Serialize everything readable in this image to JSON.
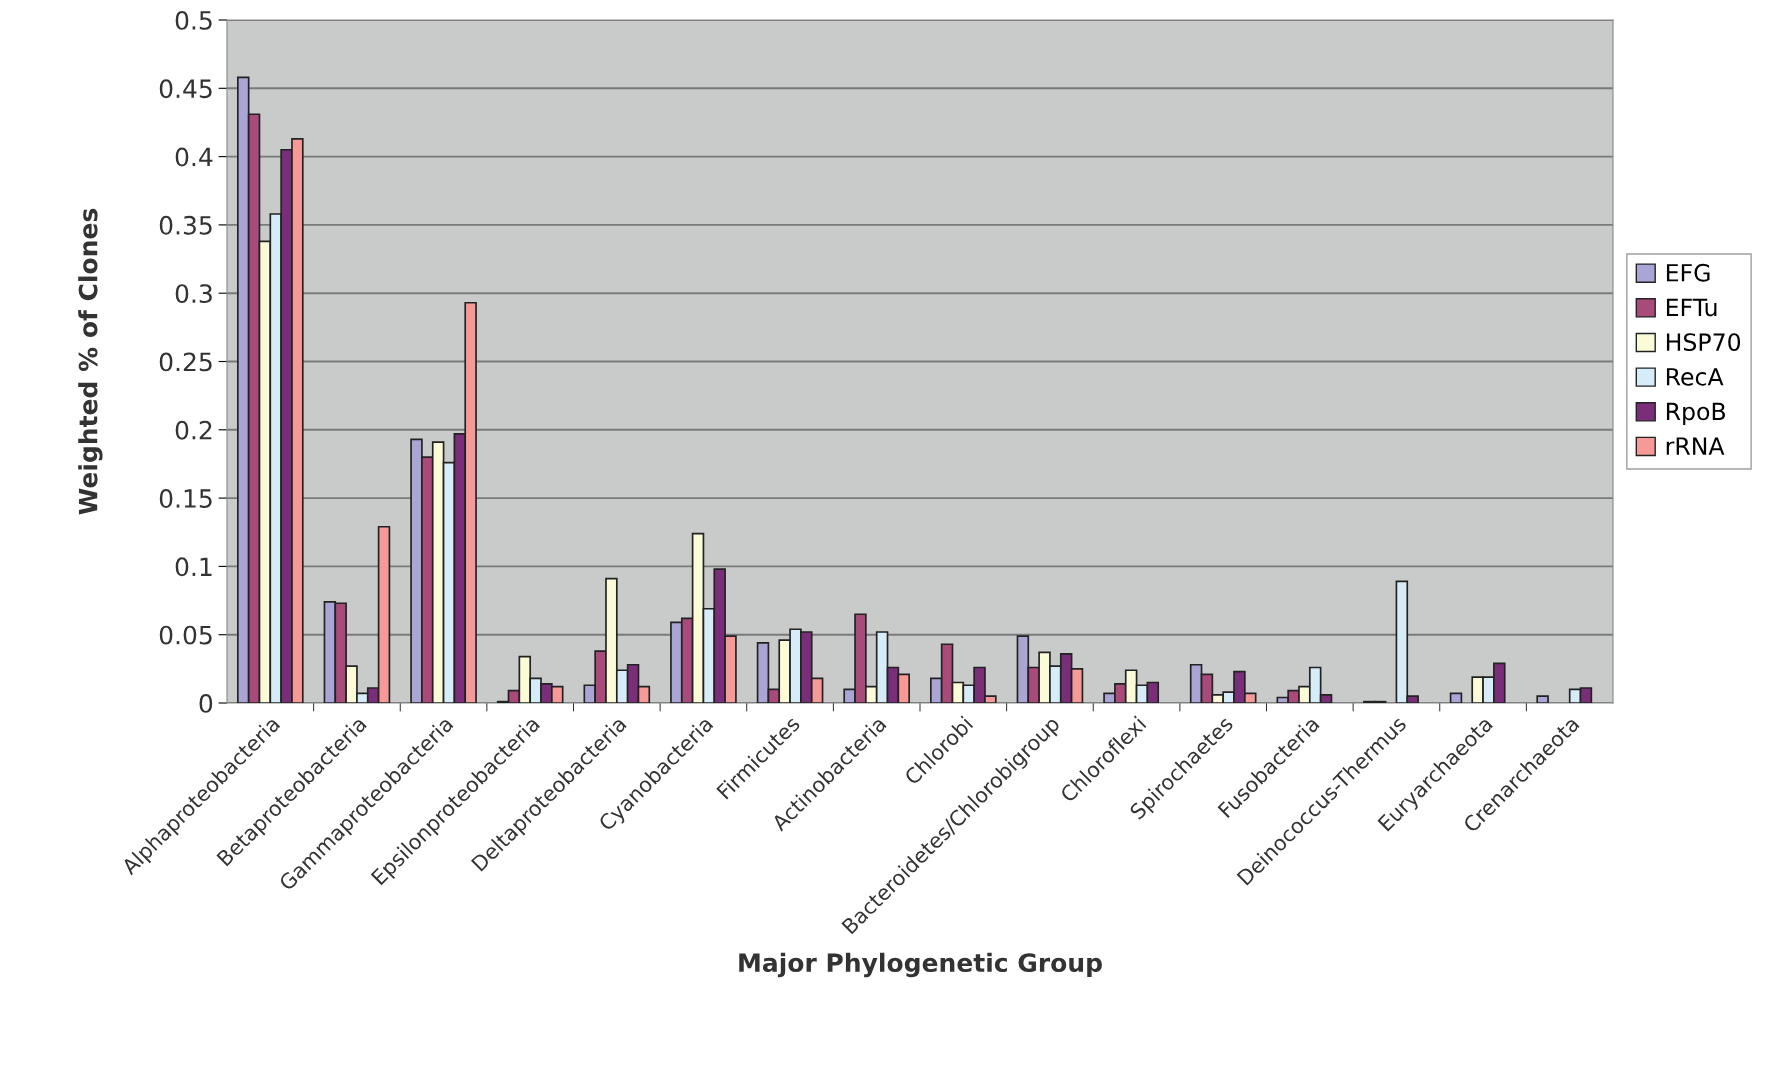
{
  "chart_data": {
    "type": "bar",
    "xlabel": "Major Phylogenetic Group",
    "ylabel": "Weighted % of Clones",
    "categories": [
      "Alphaproteobacteria",
      "Betaproteobacteria",
      "Gammaproteobacteria",
      "Epsilonproteobacteria",
      "Deltaproteobacteria",
      "Cyanobacteria",
      "Firmicutes",
      "Actinobacteria",
      "Chlorobi",
      "Bacteroidetes/Chlorobigroup",
      "Chloroflexi",
      "Spirochaetes",
      "Fusobacteria",
      "Deinococcus-Thermus",
      "Euryarchaeota",
      "Crenarchaeota"
    ],
    "series": [
      {
        "name": "EFG",
        "color": "#a9a6d6",
        "values": [
          0.458,
          0.074,
          0.193,
          0.001,
          0.013,
          0.059,
          0.044,
          0.01,
          0.018,
          0.049,
          0.007,
          0.028,
          0.004,
          0.001,
          0.007,
          0.005
        ]
      },
      {
        "name": "EFTu",
        "color": "#a84a7a",
        "values": [
          0.431,
          0.073,
          0.18,
          0.009,
          0.038,
          0.062,
          0.01,
          0.065,
          0.043,
          0.026,
          0.014,
          0.021,
          0.009,
          0.001,
          null,
          null
        ]
      },
      {
        "name": "HSP70",
        "color": "#fbfbd8",
        "values": [
          0.338,
          0.027,
          0.191,
          0.034,
          0.091,
          0.124,
          0.046,
          0.012,
          0.015,
          0.037,
          0.024,
          0.006,
          0.012,
          null,
          0.019,
          null
        ]
      },
      {
        "name": "RecA",
        "color": "#d6ecf8",
        "values": [
          0.358,
          0.007,
          0.176,
          0.018,
          0.024,
          0.069,
          0.054,
          0.052,
          0.013,
          0.027,
          0.013,
          0.008,
          0.026,
          0.089,
          0.019,
          0.01
        ]
      },
      {
        "name": "RpoB",
        "color": "#7a2e7a",
        "values": [
          0.405,
          0.011,
          0.197,
          0.014,
          0.028,
          0.098,
          0.052,
          0.026,
          0.026,
          0.036,
          0.015,
          0.023,
          0.006,
          0.005,
          0.029,
          0.011
        ]
      },
      {
        "name": "rRNA",
        "color": "#f59a96",
        "values": [
          0.413,
          0.129,
          0.293,
          0.012,
          0.012,
          0.049,
          0.018,
          0.021,
          0.005,
          0.025,
          null,
          0.007,
          null,
          null,
          null,
          null
        ]
      }
    ],
    "ylim": [
      0,
      0.5
    ],
    "yticks": [
      0,
      0.05,
      0.1,
      0.15,
      0.2,
      0.25,
      0.3,
      0.35,
      0.4,
      0.45,
      0.5
    ],
    "grid": "y",
    "legend": "right"
  }
}
